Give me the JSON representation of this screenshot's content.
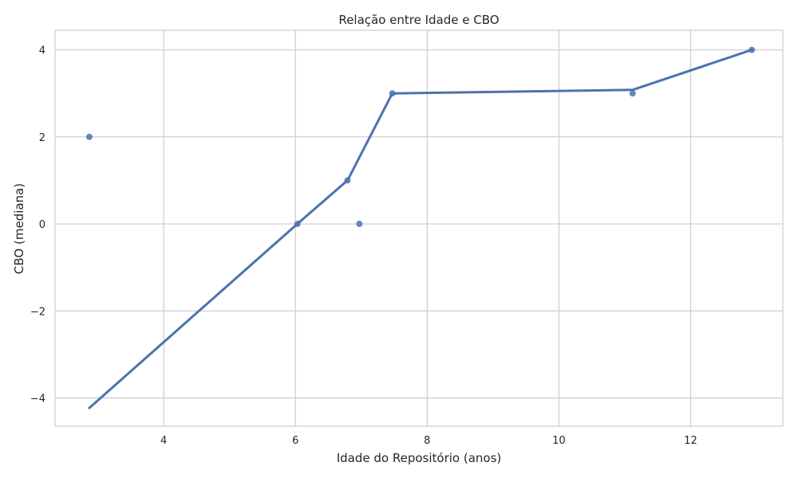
{
  "chart_data": {
    "type": "scatter",
    "title": "Relação entre Idade e CBO",
    "xlabel": "Idade do Repositório (anos)",
    "ylabel": "CBO (mediana)",
    "xlim": [
      2.35,
      13.4
    ],
    "ylim": [
      -4.65,
      4.45
    ],
    "xticks": [
      4,
      6,
      8,
      10,
      12
    ],
    "yticks": [
      -4,
      -2,
      0,
      2,
      4
    ],
    "xtick_labels": [
      "4",
      "6",
      "8",
      "10",
      "12"
    ],
    "ytick_labels": [
      "−4",
      "−2",
      "0",
      "2",
      "4"
    ],
    "grid": true,
    "color": "#4c72b0",
    "series": [
      {
        "kind": "points",
        "x": [
          2.87,
          6.03,
          6.79,
          6.97,
          7.47,
          11.12,
          12.93
        ],
        "y": [
          2,
          0,
          1,
          0,
          3,
          3,
          4
        ]
      },
      {
        "kind": "line",
        "x": [
          2.87,
          6.03,
          6.79,
          7.47,
          11.12,
          12.93
        ],
        "y": [
          -4.23,
          0,
          1,
          3,
          3.08,
          4
        ]
      }
    ]
  }
}
